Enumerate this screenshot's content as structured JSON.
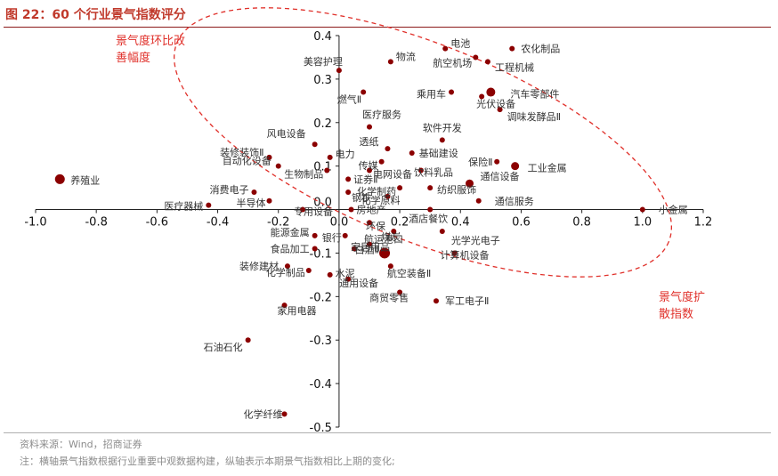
{
  "figure": {
    "title": "图 22：60 个行业景气指数评分",
    "source": "资料来源：Wind，招商证券",
    "note": "注：横轴景气指数根据行业重要中观数据构建，纵轴表示本期景气指数相比上期的变化;"
  },
  "chart_data": {
    "type": "scatter",
    "x_ticks": [
      "-1.0",
      "-0.8",
      "-0.6",
      "-0.4",
      "-0.2",
      "0.0",
      "0.2",
      "0.4",
      "0.6",
      "0.8",
      "1.0",
      "1.2"
    ],
    "y_ticks": [
      "0.4",
      "0.3",
      "0.2",
      "0.1",
      "0.0",
      "-0.1",
      "-0.2",
      "-0.3",
      "-0.4",
      "-0.5"
    ],
    "xlim": [
      -1.0,
      1.2
    ],
    "ylim": [
      -0.5,
      0.4
    ],
    "grid": false,
    "annotations": {
      "upper_left": [
        "景气度环比改",
        "善幅度"
      ],
      "lower_right": [
        "景气度扩",
        "散指数"
      ],
      "ellipse_color": "#e0302a"
    },
    "colors": {
      "point": "#8b0000",
      "label": "#333333",
      "axis": "#222222",
      "annotation": "#e0302a"
    },
    "points": [
      {
        "name": "养殖业",
        "x": -0.92,
        "y": 0.07
      },
      {
        "name": "医疗器械",
        "x": -0.43,
        "y": 0.01
      },
      {
        "name": "消费电子",
        "x": -0.28,
        "y": 0.04
      },
      {
        "name": "半导体",
        "x": -0.23,
        "y": 0.02
      },
      {
        "name": "专用设备",
        "x": -0.12,
        "y": 0.0
      },
      {
        "name": "装修装饰Ⅱ",
        "x": -0.23,
        "y": 0.12
      },
      {
        "name": "自动化设备",
        "x": -0.2,
        "y": 0.1
      },
      {
        "name": "风电设备",
        "x": -0.08,
        "y": 0.15
      },
      {
        "name": "生物制品",
        "x": -0.04,
        "y": 0.09
      },
      {
        "name": "电力",
        "x": -0.03,
        "y": 0.12
      },
      {
        "name": "医疗服务",
        "x": 0.1,
        "y": 0.19
      },
      {
        "name": "美容护理",
        "x": 0.0,
        "y": 0.32
      },
      {
        "name": "物流",
        "x": 0.17,
        "y": 0.34
      },
      {
        "name": "燃气Ⅱ",
        "x": 0.08,
        "y": 0.27
      },
      {
        "name": "电池",
        "x": 0.35,
        "y": 0.37
      },
      {
        "name": "农化制品",
        "x": 0.57,
        "y": 0.37
      },
      {
        "name": "航空机场",
        "x": 0.45,
        "y": 0.35
      },
      {
        "name": "工程机械",
        "x": 0.49,
        "y": 0.34
      },
      {
        "name": "乘用车",
        "x": 0.37,
        "y": 0.27
      },
      {
        "name": "汽车零部件",
        "x": 0.5,
        "y": 0.27
      },
      {
        "name": "光伏设备",
        "x": 0.47,
        "y": 0.26
      },
      {
        "name": "调味发酵品Ⅱ",
        "x": 0.53,
        "y": 0.23
      },
      {
        "name": "软件开发",
        "x": 0.34,
        "y": 0.16
      },
      {
        "name": "透纸",
        "x": 0.16,
        "y": 0.14
      },
      {
        "name": "基础建设",
        "x": 0.24,
        "y": 0.13
      },
      {
        "name": "传媒",
        "x": 0.14,
        "y": 0.11
      },
      {
        "name": "电网设备",
        "x": 0.1,
        "y": 0.09
      },
      {
        "name": "饮料乳品",
        "x": 0.27,
        "y": 0.09
      },
      {
        "name": "保险Ⅱ",
        "x": 0.52,
        "y": 0.11
      },
      {
        "name": "工业金属",
        "x": 0.58,
        "y": 0.1
      },
      {
        "name": "证券Ⅱ",
        "x": 0.03,
        "y": 0.07
      },
      {
        "name": "化学制药",
        "x": 0.2,
        "y": 0.05
      },
      {
        "name": "纺织服饰",
        "x": 0.3,
        "y": 0.05
      },
      {
        "name": "通信设备",
        "x": 0.43,
        "y": 0.06
      },
      {
        "name": "钢铁",
        "x": 0.03,
        "y": 0.04
      },
      {
        "name": "化学原料",
        "x": 0.16,
        "y": 0.03
      },
      {
        "name": "通信服务",
        "x": 0.46,
        "y": 0.02
      },
      {
        "name": "房地产",
        "x": 0.04,
        "y": 0.0
      },
      {
        "name": "酒店餐饮",
        "x": 0.3,
        "y": 0.0
      },
      {
        "name": "小金属",
        "x": 1.0,
        "y": 0.0
      },
      {
        "name": "环保",
        "x": 0.1,
        "y": -0.03
      },
      {
        "name": "煤炭",
        "x": 0.18,
        "y": -0.05
      },
      {
        "name": "光学光电子",
        "x": 0.34,
        "y": -0.05
      },
      {
        "name": "银行",
        "x": 0.02,
        "y": -0.06
      },
      {
        "name": "能源金属",
        "x": -0.08,
        "y": -0.06
      },
      {
        "name": "航运港口",
        "x": 0.1,
        "y": -0.08
      },
      {
        "name": "食品加工",
        "x": -0.08,
        "y": -0.09
      },
      {
        "name": "家居用品",
        "x": 0.05,
        "y": -0.09
      },
      {
        "name": "白酒Ⅱ",
        "x": 0.15,
        "y": -0.1
      },
      {
        "name": "计算机设备",
        "x": 0.38,
        "y": -0.1
      },
      {
        "name": "装修建材",
        "x": -0.17,
        "y": -0.13
      },
      {
        "name": "化学制品",
        "x": -0.1,
        "y": -0.14
      },
      {
        "name": "水泥",
        "x": -0.03,
        "y": -0.15
      },
      {
        "name": "通用设备",
        "x": 0.03,
        "y": -0.16
      },
      {
        "name": "航空装备Ⅱ",
        "x": 0.17,
        "y": -0.13
      },
      {
        "name": "商贸零售",
        "x": 0.2,
        "y": -0.19
      },
      {
        "name": "军工电子Ⅱ",
        "x": 0.32,
        "y": -0.21
      },
      {
        "name": "家用电器",
        "x": -0.18,
        "y": -0.22
      },
      {
        "name": "石油石化",
        "x": -0.3,
        "y": -0.3
      },
      {
        "name": "化学纤维",
        "x": -0.18,
        "y": -0.47
      }
    ]
  }
}
